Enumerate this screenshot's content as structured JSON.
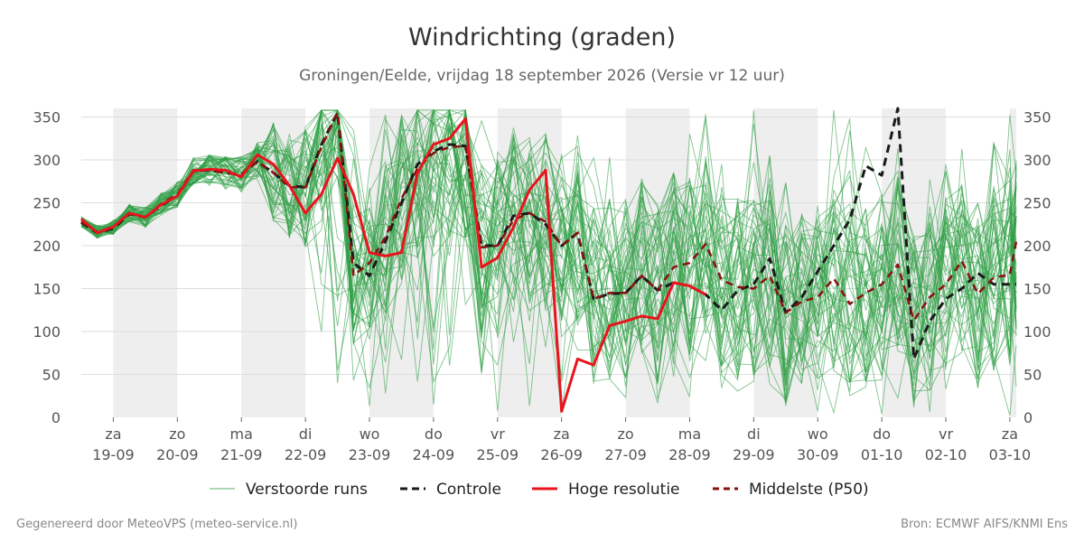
{
  "chart_data": {
    "type": "line",
    "title": "Windrichting (graden)",
    "subtitle": "Groningen/Eelde, vrijdag 18 september 2026 (Versie vr 12 uur)",
    "ylim": [
      0,
      360
    ],
    "yticks": [
      0,
      50,
      100,
      150,
      200,
      250,
      300,
      350
    ],
    "x_domain_days": [
      0,
      14.6
    ],
    "day_labels": [
      {
        "day": "za",
        "date": "19-09"
      },
      {
        "day": "zo",
        "date": "20-09"
      },
      {
        "day": "ma",
        "date": "21-09"
      },
      {
        "day": "di",
        "date": "22-09"
      },
      {
        "day": "wo",
        "date": "23-09"
      },
      {
        "day": "do",
        "date": "24-09"
      },
      {
        "day": "vr",
        "date": "25-09"
      },
      {
        "day": "za",
        "date": "26-09"
      },
      {
        "day": "zo",
        "date": "27-09"
      },
      {
        "day": "ma",
        "date": "28-09"
      },
      {
        "day": "di",
        "date": "29-09"
      },
      {
        "day": "wo",
        "date": "30-09"
      },
      {
        "day": "do",
        "date": "01-10"
      },
      {
        "day": "vr",
        "date": "02-10"
      },
      {
        "day": "za",
        "date": "03-10"
      }
    ],
    "weekend_shading": [
      [
        0.5,
        1.5
      ],
      [
        2.5,
        3.5
      ],
      [
        4.5,
        5.5
      ],
      [
        6.5,
        7.5
      ],
      [
        8.5,
        9.5
      ],
      [
        10.5,
        11.5
      ],
      [
        12.5,
        13.5
      ],
      [
        14.5,
        14.6
      ]
    ],
    "colors": {
      "ensemble": "#2e9e45",
      "controle": "#1a1a1a",
      "hoge_resolutie": "#e8141c",
      "p50": "#8b1010",
      "weekend": "#eeeeee",
      "grid": "#dddddd"
    },
    "legend_position": "bottom",
    "legend": [
      {
        "key": "ensemble",
        "label": "Verstoorde runs"
      },
      {
        "key": "controle",
        "label": "Controle"
      },
      {
        "key": "hoge_resolutie",
        "label": "Hoge resolutie"
      },
      {
        "key": "p50",
        "label": "Middelste (P50)"
      }
    ],
    "series": [
      {
        "name": "Hoge resolutie",
        "key": "hoge_resolutie",
        "points": [
          [
            0.0,
            231
          ],
          [
            0.25,
            215
          ],
          [
            0.5,
            222
          ],
          [
            0.75,
            238
          ],
          [
            1.0,
            233
          ],
          [
            1.25,
            248
          ],
          [
            1.5,
            258
          ],
          [
            1.75,
            287
          ],
          [
            2.0,
            289
          ],
          [
            2.25,
            288
          ],
          [
            2.5,
            280
          ],
          [
            2.75,
            306
          ],
          [
            3.0,
            295
          ],
          [
            3.25,
            270
          ],
          [
            3.5,
            238
          ],
          [
            3.75,
            260
          ],
          [
            4.0,
            302
          ],
          [
            4.25,
            260
          ],
          [
            4.5,
            192
          ],
          [
            4.75,
            188
          ],
          [
            5.0,
            192
          ],
          [
            5.25,
            285
          ],
          [
            5.5,
            318
          ],
          [
            5.75,
            325
          ],
          [
            6.0,
            348
          ],
          [
            6.25,
            175
          ],
          [
            6.5,
            186
          ],
          [
            6.75,
            222
          ],
          [
            7.0,
            265
          ],
          [
            7.25,
            288
          ],
          [
            7.5,
            7
          ],
          [
            7.75,
            68
          ],
          [
            8.0,
            61
          ],
          [
            8.25,
            107
          ],
          [
            8.5,
            112
          ],
          [
            8.75,
            118
          ],
          [
            9.0,
            115
          ],
          [
            9.25,
            157
          ],
          [
            9.5,
            153
          ],
          [
            9.75,
            143
          ]
        ]
      },
      {
        "name": "Controle",
        "key": "controle",
        "points": [
          [
            0.0,
            227
          ],
          [
            0.25,
            215
          ],
          [
            0.5,
            220
          ],
          [
            0.75,
            237
          ],
          [
            1.0,
            233
          ],
          [
            1.25,
            247
          ],
          [
            1.5,
            258
          ],
          [
            1.75,
            287
          ],
          [
            2.0,
            288
          ],
          [
            2.25,
            285
          ],
          [
            2.5,
            283
          ],
          [
            2.75,
            298
          ],
          [
            3.0,
            285
          ],
          [
            3.25,
            270
          ],
          [
            3.5,
            268
          ],
          [
            3.75,
            318
          ],
          [
            4.0,
            355
          ],
          [
            4.25,
            180
          ],
          [
            4.5,
            165
          ],
          [
            4.75,
            205
          ],
          [
            5.0,
            250
          ],
          [
            5.25,
            295
          ],
          [
            5.5,
            310
          ],
          [
            5.75,
            318
          ],
          [
            6.0,
            316
          ],
          [
            6.25,
            200
          ],
          [
            6.5,
            200
          ],
          [
            6.75,
            235
          ],
          [
            7.0,
            238
          ],
          [
            7.25,
            225
          ],
          [
            7.5,
            200
          ],
          [
            7.75,
            215
          ],
          [
            8.0,
            138
          ],
          [
            8.25,
            144
          ],
          [
            8.5,
            145
          ],
          [
            8.75,
            165
          ],
          [
            9.0,
            148
          ],
          [
            9.25,
            157
          ],
          [
            9.5,
            153
          ],
          [
            9.75,
            143
          ],
          [
            10.0,
            125
          ],
          [
            10.25,
            148
          ],
          [
            10.5,
            155
          ],
          [
            10.75,
            185
          ],
          [
            11.0,
            122
          ],
          [
            11.25,
            140
          ],
          [
            11.5,
            170
          ],
          [
            11.75,
            200
          ],
          [
            12.0,
            230
          ],
          [
            12.25,
            293
          ],
          [
            12.5,
            282
          ],
          [
            12.75,
            360
          ],
          [
            13.0,
            68
          ],
          [
            13.25,
            112
          ],
          [
            13.5,
            138
          ],
          [
            13.75,
            150
          ],
          [
            14.0,
            168
          ],
          [
            14.25,
            155
          ],
          [
            14.5,
            155
          ],
          [
            14.6,
            155
          ]
        ]
      },
      {
        "name": "Middelste (P50)",
        "key": "p50",
        "points": [
          [
            0.0,
            228
          ],
          [
            0.25,
            216
          ],
          [
            0.5,
            222
          ],
          [
            0.75,
            238
          ],
          [
            1.0,
            233
          ],
          [
            1.25,
            249
          ],
          [
            1.5,
            260
          ],
          [
            1.75,
            288
          ],
          [
            2.0,
            288
          ],
          [
            2.25,
            285
          ],
          [
            2.5,
            283
          ],
          [
            2.75,
            298
          ],
          [
            3.0,
            285
          ],
          [
            3.25,
            268
          ],
          [
            3.5,
            268
          ],
          [
            3.75,
            315
          ],
          [
            4.0,
            355
          ],
          [
            4.25,
            165
          ],
          [
            4.5,
            180
          ],
          [
            4.75,
            210
          ],
          [
            5.0,
            255
          ],
          [
            5.25,
            290
          ],
          [
            5.5,
            308
          ],
          [
            5.75,
            315
          ],
          [
            6.0,
            316
          ],
          [
            6.25,
            198
          ],
          [
            6.5,
            200
          ],
          [
            6.75,
            230
          ],
          [
            7.0,
            238
          ],
          [
            7.25,
            228
          ],
          [
            7.5,
            200
          ],
          [
            7.75,
            215
          ],
          [
            8.0,
            138
          ],
          [
            8.25,
            145
          ],
          [
            8.5,
            145
          ],
          [
            8.75,
            165
          ],
          [
            9.0,
            148
          ],
          [
            9.25,
            175
          ],
          [
            9.5,
            180
          ],
          [
            9.75,
            202
          ],
          [
            10.0,
            160
          ],
          [
            10.25,
            152
          ],
          [
            10.5,
            150
          ],
          [
            10.75,
            165
          ],
          [
            11.0,
            122
          ],
          [
            11.25,
            135
          ],
          [
            11.5,
            140
          ],
          [
            11.75,
            162
          ],
          [
            12.0,
            132
          ],
          [
            12.25,
            145
          ],
          [
            12.5,
            155
          ],
          [
            12.75,
            178
          ],
          [
            13.0,
            113
          ],
          [
            13.25,
            140
          ],
          [
            13.5,
            155
          ],
          [
            13.75,
            182
          ],
          [
            14.0,
            144
          ],
          [
            14.25,
            163
          ],
          [
            14.5,
            166
          ],
          [
            14.6,
            205
          ]
        ]
      }
    ]
  },
  "footer": {
    "left": "Gegenereerd door MeteoVPS (meteo-service.nl)",
    "right": "Bron: ECMWF AIFS/KNMI Ens"
  }
}
